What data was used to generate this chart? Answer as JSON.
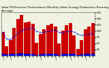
{
  "title": "Solar PV/Inverter Performance Monthly Solar Energy Production Running Average",
  "bar_values": [
    95,
    38,
    62,
    112,
    148,
    165,
    133,
    138,
    128,
    52,
    88,
    108,
    122,
    128,
    118,
    48,
    102,
    122,
    132,
    82,
    28,
    62,
    108,
    118,
    132
  ],
  "blue_values": [
    8,
    6,
    7,
    8,
    9,
    10,
    9,
    9,
    8,
    4,
    6,
    8,
    9,
    9,
    8,
    4,
    7,
    9,
    9,
    7,
    4,
    5,
    8,
    8,
    9
  ],
  "running_avg": [
    95,
    67,
    65,
    77,
    91,
    102,
    107,
    111,
    112,
    98,
    94,
    95,
    98,
    102,
    103,
    94,
    94,
    97,
    99,
    96,
    87,
    82,
    84,
    87,
    90
  ],
  "bar_color": "#cc0000",
  "blue_color": "#0000cc",
  "avg_color": "#0000ee",
  "bg_color": "#f0f0e0",
  "plot_bg": "#f0f0e0",
  "grid_color": "#ffffff",
  "n_bars": 25,
  "ymax": 175,
  "ymin": 0,
  "yticks": [
    25,
    50,
    75,
    100,
    125,
    150,
    175
  ],
  "month_labels": [
    "J",
    "",
    "J",
    "",
    "",
    "",
    "J",
    "",
    "",
    "",
    "J",
    "",
    "",
    "",
    "J",
    "",
    "",
    "",
    "J",
    "",
    "",
    "",
    "J",
    "",
    ""
  ],
  "title_fontsize": 3.2,
  "tick_fontsize": 2.8
}
